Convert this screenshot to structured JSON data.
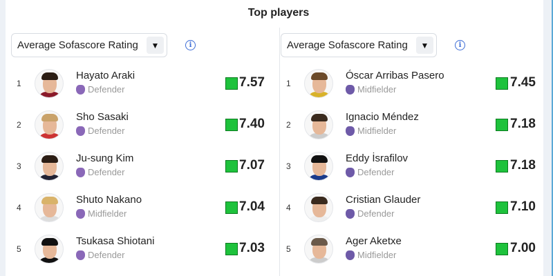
{
  "title": "Top players",
  "columns": [
    {
      "selector": "Average Sofascore Rating",
      "badge_color": "#8a68b8",
      "players": [
        {
          "rank": "1",
          "name": "Hayato Araki",
          "position": "Defender",
          "rating": "7.57"
        },
        {
          "rank": "2",
          "name": "Sho Sasaki",
          "position": "Defender",
          "rating": "7.40"
        },
        {
          "rank": "3",
          "name": "Ju-sung Kim",
          "position": "Defender",
          "rating": "7.07"
        },
        {
          "rank": "4",
          "name": "Shuto Nakano",
          "position": "Midfielder",
          "rating": "7.04"
        },
        {
          "rank": "5",
          "name": "Tsukasa Shiotani",
          "position": "Defender",
          "rating": "7.03"
        }
      ]
    },
    {
      "selector": "Average Sofascore Rating",
      "badge_color": "#6e5aa8",
      "players": [
        {
          "rank": "1",
          "name": "Óscar Arribas Pasero",
          "position": "Midfielder",
          "rating": "7.45"
        },
        {
          "rank": "2",
          "name": "Ignacio Méndez",
          "position": "Midfielder",
          "rating": "7.18"
        },
        {
          "rank": "3",
          "name": "Eddy İsrafilov",
          "position": "Defender",
          "rating": "7.18"
        },
        {
          "rank": "4",
          "name": "Cristian Glauder",
          "position": "Defender",
          "rating": "7.10"
        },
        {
          "rank": "5",
          "name": "Ager Aketxe",
          "position": "Midfielder",
          "rating": "7.00"
        }
      ]
    }
  ],
  "rating_color": "#1ec23c"
}
